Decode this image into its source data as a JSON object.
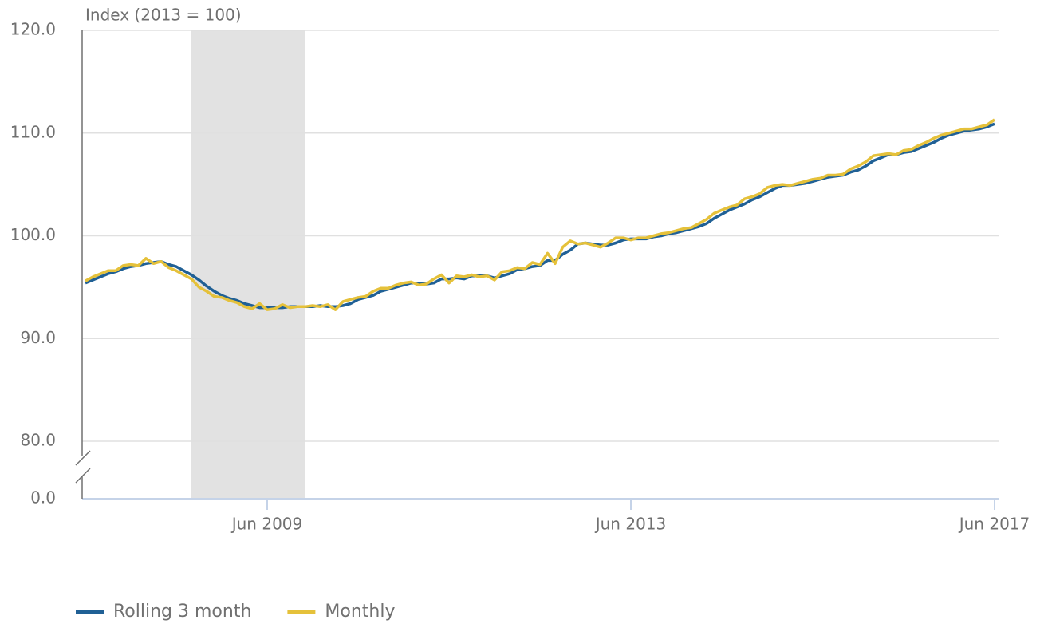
{
  "chart_data": {
    "type": "line",
    "y_axis_label": "Index (2013 = 100)",
    "categories": [
      "Jun 2007",
      "Jul 2007",
      "Aug 2007",
      "Sep 2007",
      "Oct 2007",
      "Nov 2007",
      "Dec 2007",
      "Jan 2008",
      "Feb 2008",
      "Mar 2008",
      "Apr 2008",
      "May 2008",
      "Jun 2008",
      "Jul 2008",
      "Aug 2008",
      "Sep 2008",
      "Oct 2008",
      "Nov 2008",
      "Dec 2008",
      "Jan 2009",
      "Feb 2009",
      "Mar 2009",
      "Apr 2009",
      "May 2009",
      "Jun 2009",
      "Jul 2009",
      "Aug 2009",
      "Sep 2009",
      "Oct 2009",
      "Nov 2009",
      "Dec 2009",
      "Jan 2010",
      "Feb 2010",
      "Mar 2010",
      "Apr 2010",
      "May 2010",
      "Jun 2010",
      "Jul 2010",
      "Aug 2010",
      "Sep 2010",
      "Oct 2010",
      "Nov 2010",
      "Dec 2010",
      "Jan 2011",
      "Feb 2011",
      "Mar 2011",
      "Apr 2011",
      "May 2011",
      "Jun 2011",
      "Jul 2011",
      "Aug 2011",
      "Sep 2011",
      "Oct 2011",
      "Nov 2011",
      "Dec 2011",
      "Jan 2012",
      "Feb 2012",
      "Mar 2012",
      "Apr 2012",
      "May 2012",
      "Jun 2012",
      "Jul 2012",
      "Aug 2012",
      "Sep 2012",
      "Oct 2012",
      "Nov 2012",
      "Dec 2012",
      "Jan 2013",
      "Feb 2013",
      "Mar 2013",
      "Apr 2013",
      "May 2013",
      "Jun 2013",
      "Jul 2013",
      "Aug 2013",
      "Sep 2013",
      "Oct 2013",
      "Nov 2013",
      "Dec 2013",
      "Jan 2014",
      "Feb 2014",
      "Mar 2014",
      "Apr 2014",
      "May 2014",
      "Jun 2014",
      "Jul 2014",
      "Aug 2014",
      "Sep 2014",
      "Oct 2014",
      "Nov 2014",
      "Dec 2014",
      "Jan 2015",
      "Feb 2015",
      "Mar 2015",
      "Apr 2015",
      "May 2015",
      "Jun 2015",
      "Jul 2015",
      "Aug 2015",
      "Sep 2015",
      "Oct 2015",
      "Nov 2015",
      "Dec 2015",
      "Jan 2016",
      "Feb 2016",
      "Mar 2016",
      "Apr 2016",
      "May 2016",
      "Jun 2016",
      "Jul 2016",
      "Aug 2016",
      "Sep 2016",
      "Oct 2016",
      "Nov 2016",
      "Dec 2016",
      "Jan 2017",
      "Feb 2017",
      "Mar 2017",
      "Apr 2017",
      "May 2017",
      "Jun 2017"
    ],
    "series": [
      {
        "name": "Rolling 3 month",
        "color": "#206095",
        "values": [
          95.4,
          95.7,
          96.0,
          96.3,
          96.5,
          96.8,
          97.0,
          97.1,
          97.3,
          97.4,
          97.5,
          97.2,
          97.0,
          96.6,
          96.2,
          95.7,
          95.1,
          94.6,
          94.2,
          93.9,
          93.7,
          93.4,
          93.2,
          93.0,
          93.0,
          93.0,
          93.0,
          93.1,
          93.1,
          93.1,
          93.1,
          93.2,
          93.1,
          93.1,
          93.2,
          93.4,
          93.8,
          94.0,
          94.2,
          94.6,
          94.8,
          95.0,
          95.2,
          95.4,
          95.4,
          95.3,
          95.4,
          95.8,
          95.8,
          95.9,
          95.8,
          96.1,
          96.1,
          96.1,
          95.9,
          96.1,
          96.3,
          96.7,
          96.8,
          97.0,
          97.1,
          97.6,
          97.6,
          98.2,
          98.6,
          99.2,
          99.3,
          99.2,
          99.1,
          99.1,
          99.3,
          99.6,
          99.7,
          99.7,
          99.7,
          99.9,
          100.0,
          100.2,
          100.3,
          100.5,
          100.7,
          100.9,
          101.2,
          101.7,
          102.1,
          102.5,
          102.8,
          103.1,
          103.5,
          103.8,
          104.2,
          104.6,
          104.9,
          104.9,
          105.0,
          105.1,
          105.3,
          105.5,
          105.7,
          105.8,
          105.9,
          106.2,
          106.4,
          106.8,
          107.3,
          107.6,
          107.9,
          107.9,
          108.1,
          108.2,
          108.5,
          108.8,
          109.1,
          109.5,
          109.8,
          110.0,
          110.2,
          110.3,
          110.4,
          110.6,
          110.9
        ]
      },
      {
        "name": "Monthly",
        "color": "#e5c13a",
        "values": [
          95.6,
          96.0,
          96.3,
          96.6,
          96.6,
          97.1,
          97.2,
          97.1,
          97.8,
          97.3,
          97.5,
          96.9,
          96.6,
          96.2,
          95.8,
          95.0,
          94.6,
          94.1,
          94.0,
          93.7,
          93.5,
          93.1,
          92.9,
          93.4,
          92.8,
          92.9,
          93.3,
          93.0,
          93.1,
          93.1,
          93.2,
          93.1,
          93.3,
          92.8,
          93.6,
          93.8,
          94.0,
          94.1,
          94.6,
          94.9,
          94.9,
          95.2,
          95.4,
          95.5,
          95.2,
          95.3,
          95.8,
          96.2,
          95.4,
          96.1,
          96.0,
          96.2,
          96.0,
          96.1,
          95.7,
          96.5,
          96.6,
          96.9,
          96.8,
          97.4,
          97.2,
          98.3,
          97.3,
          98.9,
          99.5,
          99.2,
          99.3,
          99.1,
          98.9,
          99.3,
          99.8,
          99.8,
          99.6,
          99.8,
          99.8,
          100.0,
          100.2,
          100.3,
          100.5,
          100.7,
          100.8,
          101.2,
          101.6,
          102.2,
          102.5,
          102.8,
          103.0,
          103.6,
          103.8,
          104.1,
          104.7,
          104.9,
          105.0,
          104.9,
          105.1,
          105.3,
          105.5,
          105.6,
          105.9,
          105.9,
          106.0,
          106.5,
          106.8,
          107.2,
          107.8,
          107.9,
          108.0,
          107.9,
          108.3,
          108.4,
          108.8,
          109.1,
          109.5,
          109.8,
          110.0,
          110.2,
          110.4,
          110.4,
          110.6,
          110.8,
          111.3
        ]
      }
    ],
    "xticks": [
      "Jun 2009",
      "Jun 2013",
      "Jun 2017"
    ],
    "ylim": [
      80,
      120
    ],
    "yticks": [
      {
        "value": 0,
        "label": "0.0"
      },
      {
        "value": 80,
        "label": "80.0"
      },
      {
        "value": 90,
        "label": "90.0"
      },
      {
        "value": 100,
        "label": "100.0"
      },
      {
        "value": 110,
        "label": "110.0"
      },
      {
        "value": 120,
        "label": "120.0"
      }
    ],
    "axis_break": true,
    "grid": true,
    "shaded_region": [
      "Aug 2008",
      "Nov 2009"
    ],
    "shaded_color": "#e2e2e2",
    "legend": "bottom-left"
  }
}
